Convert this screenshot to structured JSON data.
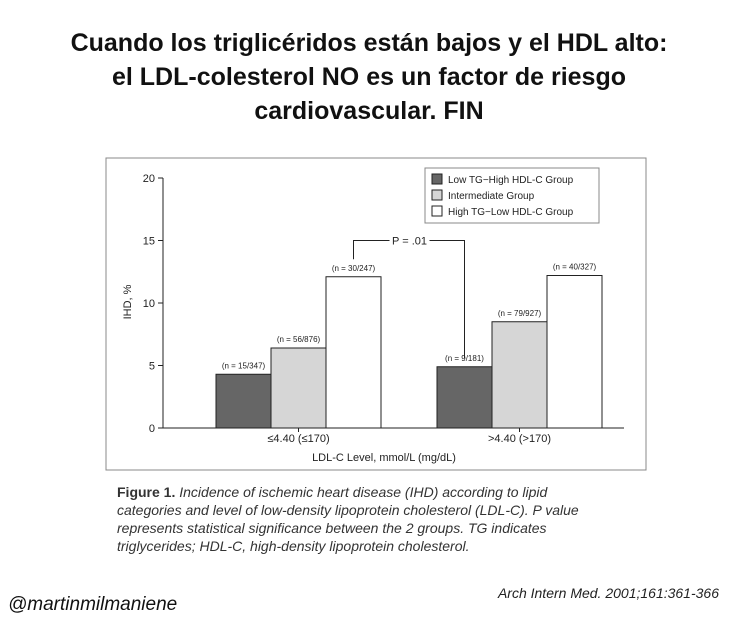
{
  "headline": [
    "Cuando los triglicéridos están bajos y el HDL alto:",
    "el LDL-colesterol NO es un factor de riesgo",
    "cardiovascular. FIN"
  ],
  "chart_data": {
    "type": "bar",
    "ylabel": "IHD, %",
    "xlabel": "LDL-C Level, mmol/L (mg/dL)",
    "ylim": [
      0,
      20
    ],
    "yticks": [
      0,
      5,
      10,
      15,
      20
    ],
    "grid": false,
    "legend_position": "top-right",
    "categories": [
      "≤4.40 (≤170)",
      ">4.40 (>170)"
    ],
    "series": [
      {
        "name": "Low TG−High HDL-C Group",
        "color": "#666666",
        "values": [
          4.3,
          4.9
        ],
        "labels": [
          "(n = 15/347)",
          "(n = 9/181)"
        ]
      },
      {
        "name": "Intermediate Group",
        "color": "#d6d6d6",
        "values": [
          6.4,
          8.5
        ],
        "labels": [
          "(n = 56/876)",
          "(n = 79/927)"
        ]
      },
      {
        "name": "High TG−Low HDL-C Group",
        "color": "#ffffff",
        "values": [
          12.1,
          12.2
        ],
        "labels": [
          "(n = 30/247)",
          "(n = 40/327)"
        ]
      }
    ],
    "annotation": "P = .01"
  },
  "caption": {
    "label": "Figure 1.",
    "text": "Incidence of ischemic heart disease (IHD) according to lipid categories and level of low-density lipoprotein cholesterol (LDL-C). P value represents statistical significance between the 2 groups. TG indicates triglycerides; HDL-C, high-density lipoprotein cholesterol."
  },
  "handle": "@martinmilmaniene",
  "citation": "Arch Intern Med. 2001;161:361-366"
}
